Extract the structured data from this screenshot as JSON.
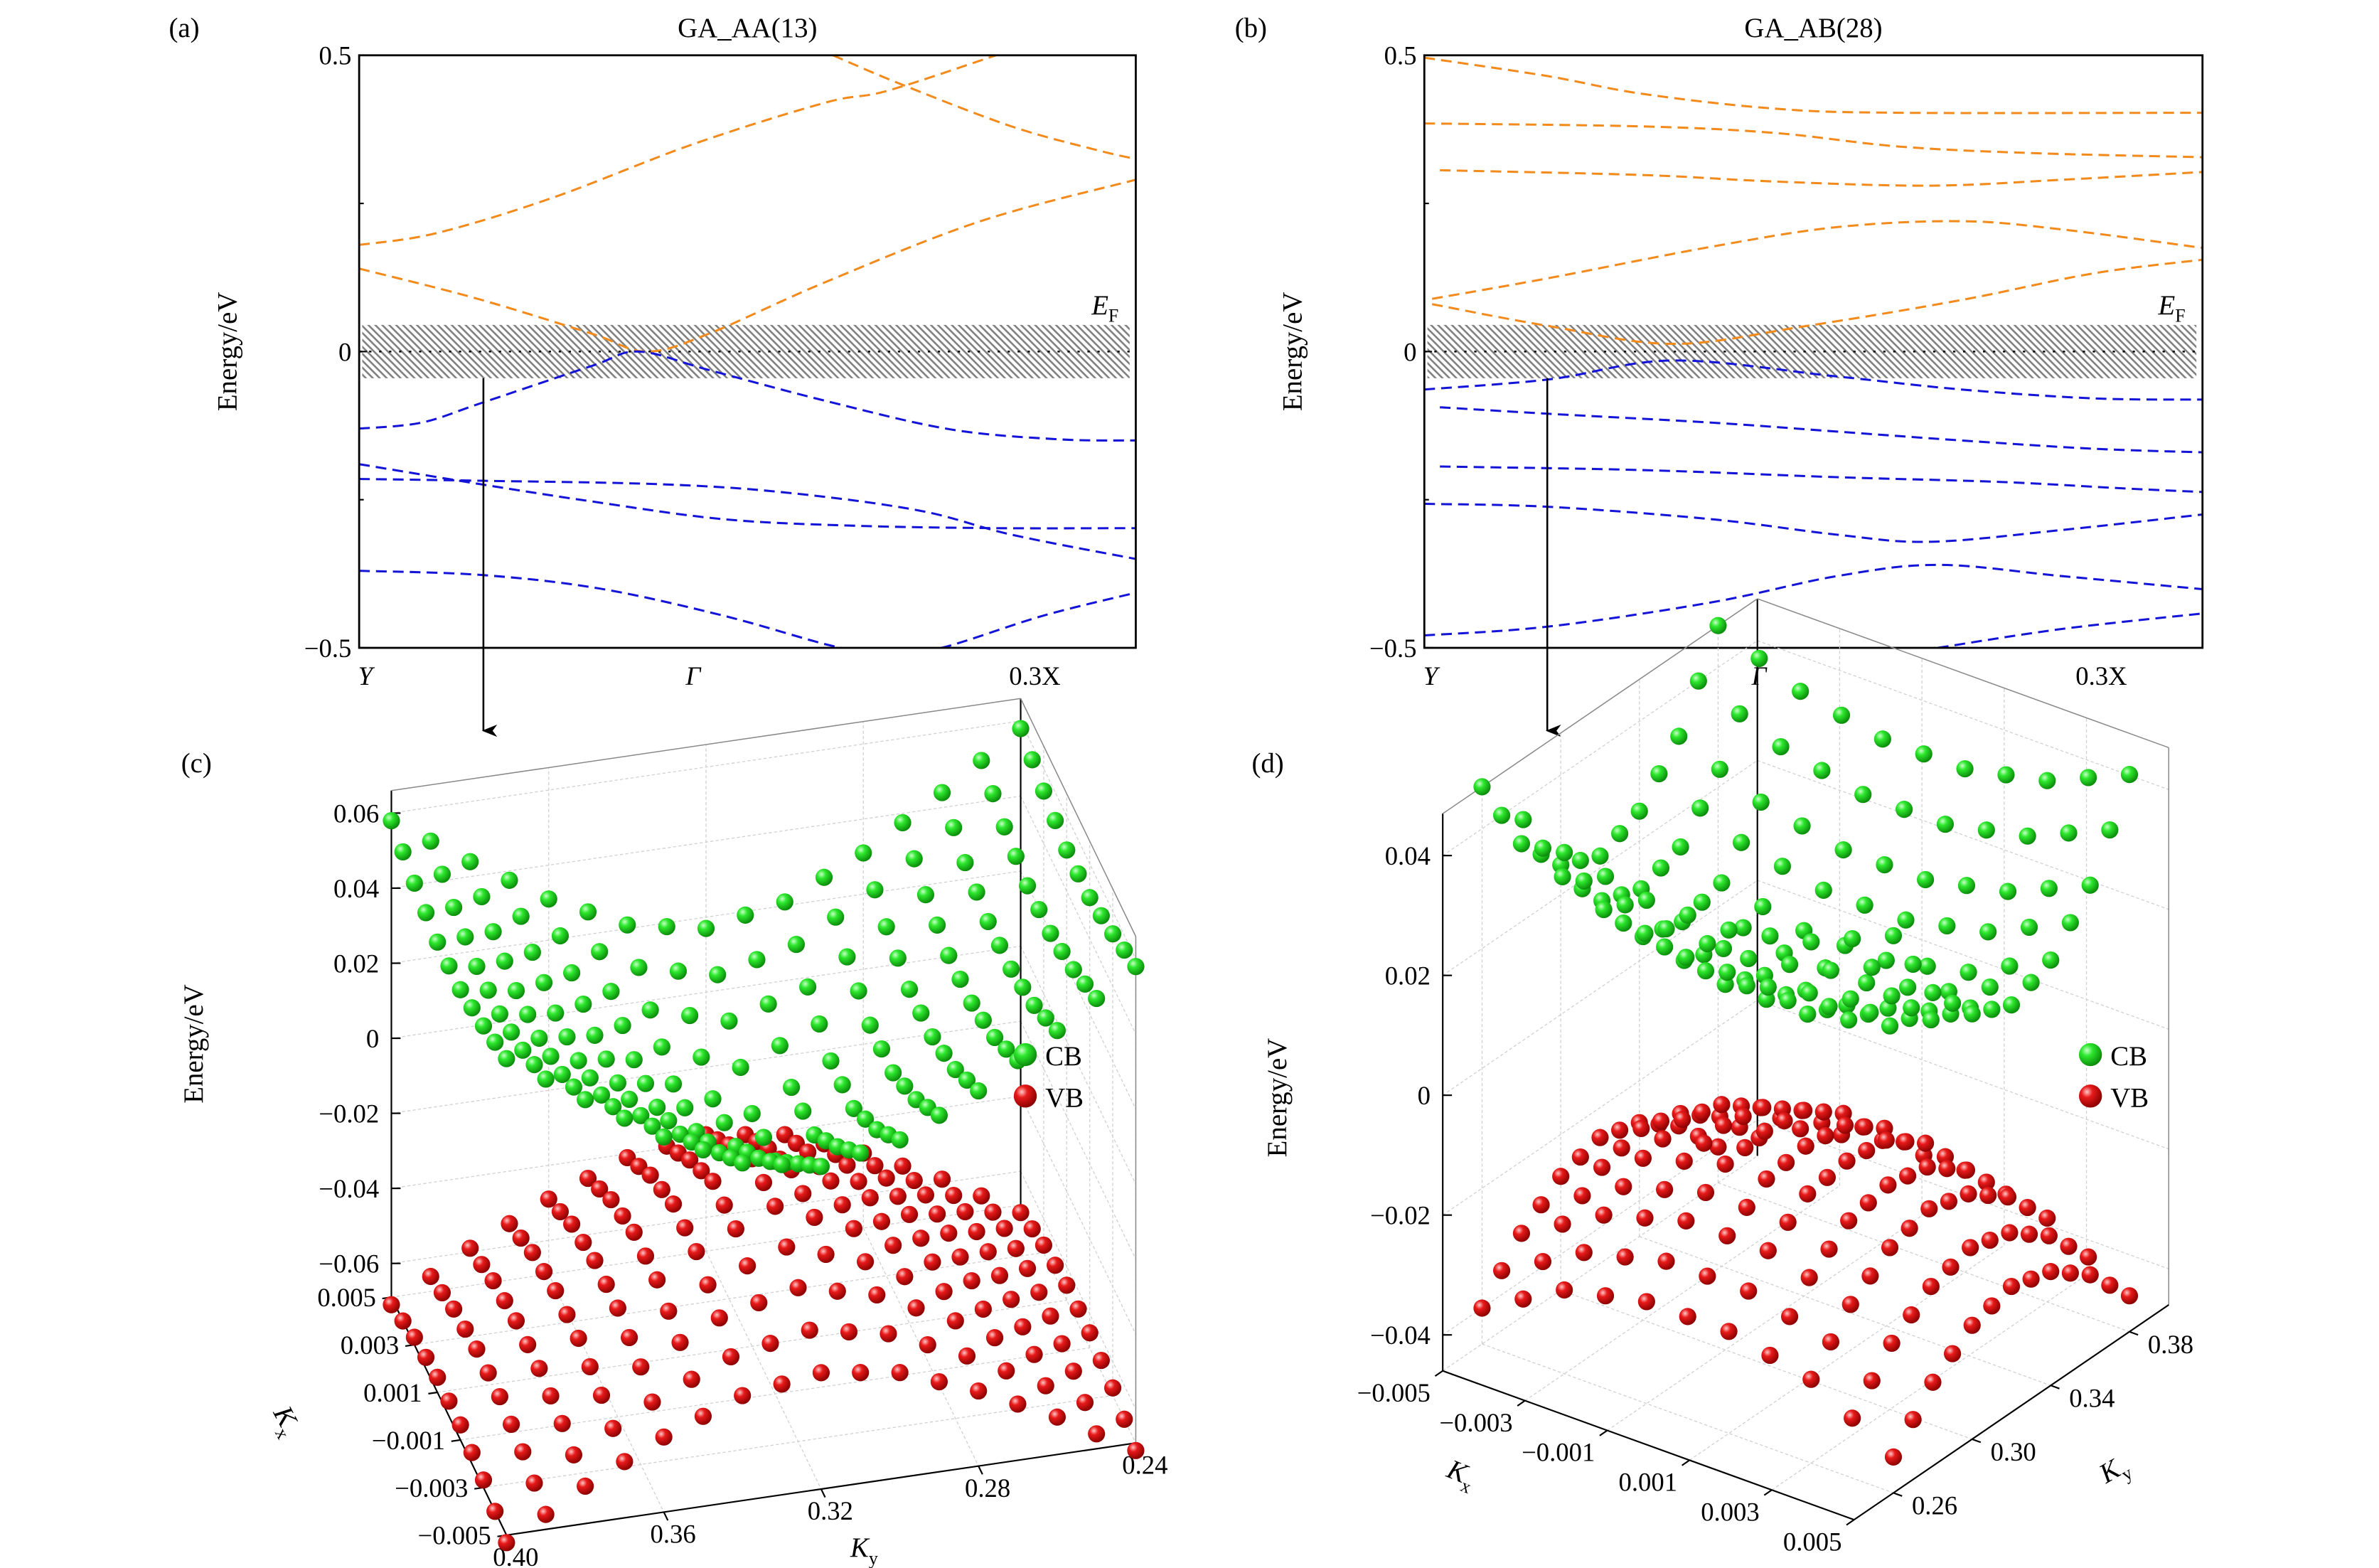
{
  "chart_data": [
    {
      "panel": "(a)",
      "type": "line",
      "title": "GA_AA(13)",
      "ylabel": "Energy/eV",
      "ylim": [
        -0.5,
        0.5
      ],
      "yticks": [
        {
          "value": 0.5,
          "label": "0.5"
        },
        {
          "value": 0,
          "label": "0"
        },
        {
          "value": -0.5,
          "label": "−0.5"
        }
      ],
      "yminor": [
        0.25,
        -0.25
      ],
      "xticks": [
        {
          "k": 0,
          "label": "Y"
        },
        {
          "k": 0.43,
          "label": "Γ"
        },
        {
          "k": 0.87,
          "label": "0.3X"
        }
      ],
      "fermi_label": {
        "main": "E",
        "sub": "F"
      },
      "fermi_window": [
        -0.045,
        0.045
      ],
      "colors": {
        "conduction": "#f28a1c",
        "valence": "#1414d8",
        "hatch": "#808080"
      },
      "series": [
        {
          "band": "conduction",
          "x": [
            0,
            0.1,
            0.25,
            0.43,
            0.6,
            0.68,
            0.82
          ],
          "y": [
            0.18,
            0.2,
            0.26,
            0.35,
            0.42,
            0.44,
            0.5
          ]
        },
        {
          "band": "conduction",
          "x": [
            0,
            0.15,
            0.3,
            0.37,
            0.45,
            0.6,
            0.8,
            1
          ],
          "y": [
            0.14,
            0.09,
            0.03,
            0.0,
            0.03,
            0.117,
            0.22,
            0.29
          ]
        },
        {
          "band": "conduction",
          "x": [
            0.61,
            0.7,
            0.84,
            0.95,
            1
          ],
          "y": [
            0.5,
            0.45,
            0.38,
            0.34,
            0.325
          ]
        },
        {
          "band": "valence",
          "x": [
            0,
            0.08,
            0.157,
            0.3,
            0.36,
            0.45,
            0.6,
            0.76,
            0.9,
            1
          ],
          "y": [
            -0.13,
            -0.12,
            -0.087,
            -0.024,
            0.0,
            -0.031,
            -0.083,
            -0.131,
            -0.148,
            -0.15
          ]
        },
        {
          "band": "valence",
          "x": [
            0,
            0.157,
            0.3,
            0.47,
            0.64,
            0.82,
            1
          ],
          "y": [
            -0.19,
            -0.224,
            -0.253,
            -0.283,
            -0.294,
            -0.298,
            -0.298
          ]
        },
        {
          "band": "valence",
          "x": [
            0,
            0.157,
            0.39,
            0.55,
            0.72,
            0.84,
            1
          ],
          "y": [
            -0.215,
            -0.218,
            -0.224,
            -0.238,
            -0.268,
            -0.309,
            -0.35
          ]
        },
        {
          "band": "valence",
          "x": [
            0,
            0.157,
            0.31,
            0.47,
            0.61,
            0.68,
            0.75,
            0.88,
            1
          ],
          "y": [
            -0.37,
            -0.377,
            -0.4,
            -0.446,
            -0.497,
            -0.51,
            -0.5,
            -0.446,
            -0.407
          ]
        }
      ]
    },
    {
      "panel": "(b)",
      "type": "line",
      "title": "GA_AB(28)",
      "ylabel": "Energy/eV",
      "ylim": [
        -0.5,
        0.5
      ],
      "yticks": [
        {
          "value": 0.5,
          "label": "0.5"
        },
        {
          "value": 0,
          "label": "0"
        },
        {
          "value": -0.5,
          "label": "−0.5"
        }
      ],
      "yminor": [
        0.25,
        -0.25
      ],
      "xticks": [
        {
          "k": 0,
          "label": "Y"
        },
        {
          "k": 0.43,
          "label": "Γ"
        },
        {
          "k": 0.87,
          "label": "0.3X"
        }
      ],
      "fermi_label": {
        "main": "E",
        "sub": "F"
      },
      "fermi_window": [
        -0.045,
        0.045
      ],
      "colors": {
        "conduction": "#f28a1c",
        "valence": "#1414d8",
        "hatch": "#808080"
      },
      "series": [
        {
          "band": "conduction",
          "x": [
            0,
            0.158,
            0.28,
            0.45,
            0.61,
            1
          ],
          "y": [
            0.496,
            0.465,
            0.435,
            0.41,
            0.403,
            0.403
          ]
        },
        {
          "band": "conduction",
          "x": [
            0,
            0.28,
            0.45,
            0.61,
            0.78,
            1
          ],
          "y": [
            0.385,
            0.38,
            0.369,
            0.346,
            0.335,
            0.328
          ]
        },
        {
          "band": "conduction",
          "x": [
            0.02,
            0.28,
            0.45,
            0.65,
            0.82,
            1
          ],
          "y": [
            0.306,
            0.298,
            0.287,
            0.28,
            0.29,
            0.303
          ]
        },
        {
          "band": "conduction",
          "x": [
            0.01,
            0.16,
            0.365,
            0.53,
            0.69,
            0.82,
            1
          ],
          "y": [
            0.089,
            0.124,
            0.176,
            0.21,
            0.22,
            0.206,
            0.175
          ]
        },
        {
          "band": "conduction",
          "x": [
            0.01,
            0.16,
            0.32,
            0.49,
            0.69,
            0.86,
            1
          ],
          "y": [
            0.08,
            0.043,
            0.013,
            0.043,
            0.087,
            0.132,
            0.155
          ]
        },
        {
          "band": "valence",
          "x": [
            0,
            0.16,
            0.32,
            0.53,
            0.69,
            0.86,
            1
          ],
          "y": [
            -0.064,
            -0.047,
            -0.015,
            -0.042,
            -0.064,
            -0.079,
            -0.081
          ]
        },
        {
          "band": "valence",
          "x": [
            0.02,
            0.16,
            0.37,
            0.53,
            0.69,
            0.86,
            1
          ],
          "y": [
            -0.094,
            -0.105,
            -0.12,
            -0.135,
            -0.15,
            -0.164,
            -0.17
          ]
        },
        {
          "band": "valence",
          "x": [
            0.02,
            0.28,
            0.53,
            0.74,
            0.9,
            1
          ],
          "y": [
            -0.194,
            -0.2,
            -0.212,
            -0.22,
            -0.231,
            -0.237
          ]
        },
        {
          "band": "valence",
          "x": [
            0,
            0.16,
            0.37,
            0.53,
            0.65,
            0.82,
            1
          ],
          "y": [
            -0.257,
            -0.262,
            -0.283,
            -0.309,
            -0.321,
            -0.301,
            -0.275
          ]
        },
        {
          "band": "valence",
          "x": [
            0,
            0.16,
            0.37,
            0.53,
            0.66,
            0.82,
            1
          ],
          "y": [
            -0.479,
            -0.464,
            -0.423,
            -0.379,
            -0.36,
            -0.379,
            -0.401
          ]
        },
        {
          "band": "valence",
          "x": [
            0.66,
            0.82,
            1
          ],
          "y": [
            -0.5,
            -0.468,
            -0.442
          ]
        }
      ]
    },
    {
      "panel": "(c)",
      "type": "scatter3d",
      "zlabel": "Energy/eV",
      "xlabel": {
        "main": "K",
        "sub": "x"
      },
      "ylabel": {
        "main": "K",
        "sub": "y"
      },
      "kx_lim": [
        -0.005,
        0.005
      ],
      "ky_lim": [
        0.24,
        0.4
      ],
      "zlim": [
        -0.069,
        0.066
      ],
      "zticks": [
        {
          "value": 0.06,
          "label": "0.06"
        },
        {
          "value": 0.04,
          "label": "0.04"
        },
        {
          "value": 0.02,
          "label": "0.02"
        },
        {
          "value": 0,
          "label": "0"
        },
        {
          "value": -0.02,
          "label": "−0.02"
        },
        {
          "value": -0.04,
          "label": "−0.04"
        },
        {
          "value": -0.06,
          "label": "−0.06"
        }
      ],
      "kx_ticks": [
        {
          "value": 0.005,
          "label": "0.005"
        },
        {
          "value": 0.003,
          "label": "0.003"
        },
        {
          "value": 0.001,
          "label": "0.001"
        },
        {
          "value": -0.001,
          "label": "−0.001"
        },
        {
          "value": -0.003,
          "label": "−0.003"
        },
        {
          "value": -0.005,
          "label": "−0.005"
        }
      ],
      "ky_ticks": [
        {
          "value": 0.4,
          "label": "0.40"
        },
        {
          "value": 0.36,
          "label": "0.36"
        },
        {
          "value": 0.32,
          "label": "0.32"
        },
        {
          "value": 0.28,
          "label": "0.28"
        },
        {
          "value": 0.24,
          "label": "0.24"
        }
      ],
      "legend": [
        {
          "label": "CB",
          "color": "#1fd31f"
        },
        {
          "label": "VB",
          "color": "#e01010"
        }
      ],
      "grid": true,
      "kx": [
        -0.005,
        -0.003,
        -0.001,
        0.001,
        0.003,
        0.005
      ],
      "ky": [
        0.24,
        0.26,
        0.28,
        0.3,
        0.32,
        0.34,
        0.36,
        0.38,
        0.4
      ],
      "series": [
        {
          "name": "CB",
          "energy": [
            [
              0.058,
              0.044,
              0.031,
              0.021,
              0.017,
              0.021,
              0.031,
              0.044,
              0.058
            ],
            [
              0.054,
              0.038,
              0.024,
              0.011,
              0.005,
              0.011,
              0.024,
              0.038,
              0.054
            ],
            [
              0.051,
              0.035,
              0.02,
              0.004,
              -0.007,
              0.004,
              0.02,
              0.035,
              0.051
            ],
            [
              0.051,
              0.035,
              0.02,
              0.004,
              -0.007,
              0.004,
              0.02,
              0.035,
              0.051
            ],
            [
              0.054,
              0.038,
              0.024,
              0.011,
              0.005,
              0.011,
              0.024,
              0.038,
              0.054
            ],
            [
              0.058,
              0.044,
              0.031,
              0.021,
              0.017,
              0.021,
              0.031,
              0.044,
              0.058
            ]
          ]
        },
        {
          "name": "VB",
          "energy": [
            [
              -0.071,
              -0.059,
              -0.049,
              -0.041,
              -0.038,
              -0.041,
              -0.049,
              -0.059,
              -0.071
            ],
            [
              -0.067,
              -0.055,
              -0.043,
              -0.033,
              -0.028,
              -0.033,
              -0.043,
              -0.055,
              -0.067
            ],
            [
              -0.065,
              -0.053,
              -0.04,
              -0.028,
              -0.019,
              -0.028,
              -0.04,
              -0.053,
              -0.065
            ],
            [
              -0.065,
              -0.053,
              -0.04,
              -0.028,
              -0.019,
              -0.028,
              -0.04,
              -0.053,
              -0.065
            ],
            [
              -0.067,
              -0.055,
              -0.043,
              -0.033,
              -0.028,
              -0.033,
              -0.043,
              -0.055,
              -0.067
            ],
            [
              -0.071,
              -0.059,
              -0.049,
              -0.041,
              -0.038,
              -0.041,
              -0.049,
              -0.059,
              -0.071
            ]
          ]
        }
      ]
    },
    {
      "panel": "(d)",
      "type": "scatter3d",
      "zlabel": "Energy/eV",
      "xlabel": {
        "main": "K",
        "sub": "x"
      },
      "ylabel": {
        "main": "K",
        "sub": "y"
      },
      "kx_lim": [
        -0.005,
        0.005
      ],
      "ky_lim": [
        0.24,
        0.4
      ],
      "zlim": [
        -0.046,
        0.047
      ],
      "zticks": [
        {
          "value": 0.04,
          "label": "0.04"
        },
        {
          "value": 0.02,
          "label": "0.02"
        },
        {
          "value": 0,
          "label": "0"
        },
        {
          "value": -0.02,
          "label": "−0.02"
        },
        {
          "value": -0.04,
          "label": "−0.04"
        }
      ],
      "kx_ticks": [
        {
          "value": -0.005,
          "label": "−0.005"
        },
        {
          "value": -0.003,
          "label": "−0.003"
        },
        {
          "value": -0.001,
          "label": "−0.001"
        },
        {
          "value": 0.001,
          "label": "0.001"
        },
        {
          "value": 0.003,
          "label": "0.003"
        },
        {
          "value": 0.005,
          "label": "0.005"
        }
      ],
      "ky_ticks": [
        {
          "value": 0.26,
          "label": "0.26"
        },
        {
          "value": 0.3,
          "label": "0.30"
        },
        {
          "value": 0.34,
          "label": "0.34"
        },
        {
          "value": 0.38,
          "label": "0.38"
        }
      ],
      "legend": [
        {
          "label": "CB",
          "color": "#1fd31f"
        },
        {
          "label": "VB",
          "color": "#e01010"
        }
      ],
      "grid": true,
      "kx": [
        -0.005,
        -0.003,
        -0.001,
        0.001,
        0.003,
        0.005
      ],
      "ky": [
        0.26,
        0.28,
        0.3,
        0.32,
        0.34,
        0.36,
        0.38
      ],
      "series": [
        {
          "name": "CB",
          "energy": [
            [
              0.047,
              0.033,
              0.025,
              0.022,
              0.025,
              0.033,
              0.047
            ],
            [
              0.041,
              0.027,
              0.018,
              0.016,
              0.018,
              0.027,
              0.041
            ],
            [
              0.038,
              0.024,
              0.015,
              0.012,
              0.015,
              0.024,
              0.038
            ],
            [
              0.038,
              0.024,
              0.015,
              0.012,
              0.015,
              0.024,
              0.038
            ],
            [
              0.041,
              0.027,
              0.018,
              0.016,
              0.018,
              0.027,
              0.041
            ],
            [
              0.047,
              0.033,
              0.025,
              0.022,
              0.025,
              0.033,
              0.047
            ]
          ]
        },
        {
          "name": "VB",
          "energy": [
            [
              -0.04,
              -0.032,
              -0.027,
              -0.025,
              -0.027,
              -0.032,
              -0.04
            ],
            [
              -0.032,
              -0.024,
              -0.019,
              -0.017,
              -0.019,
              -0.024,
              -0.032
            ],
            [
              -0.029,
              -0.02,
              -0.015,
              -0.014,
              -0.015,
              -0.02,
              -0.029
            ],
            [
              -0.029,
              -0.02,
              -0.015,
              -0.014,
              -0.015,
              -0.02,
              -0.029
            ],
            [
              -0.032,
              -0.024,
              -0.019,
              -0.017,
              -0.019,
              -0.024,
              -0.032
            ],
            [
              -0.04,
              -0.032,
              -0.027,
              -0.025,
              -0.027,
              -0.032,
              -0.04
            ]
          ]
        }
      ]
    }
  ]
}
